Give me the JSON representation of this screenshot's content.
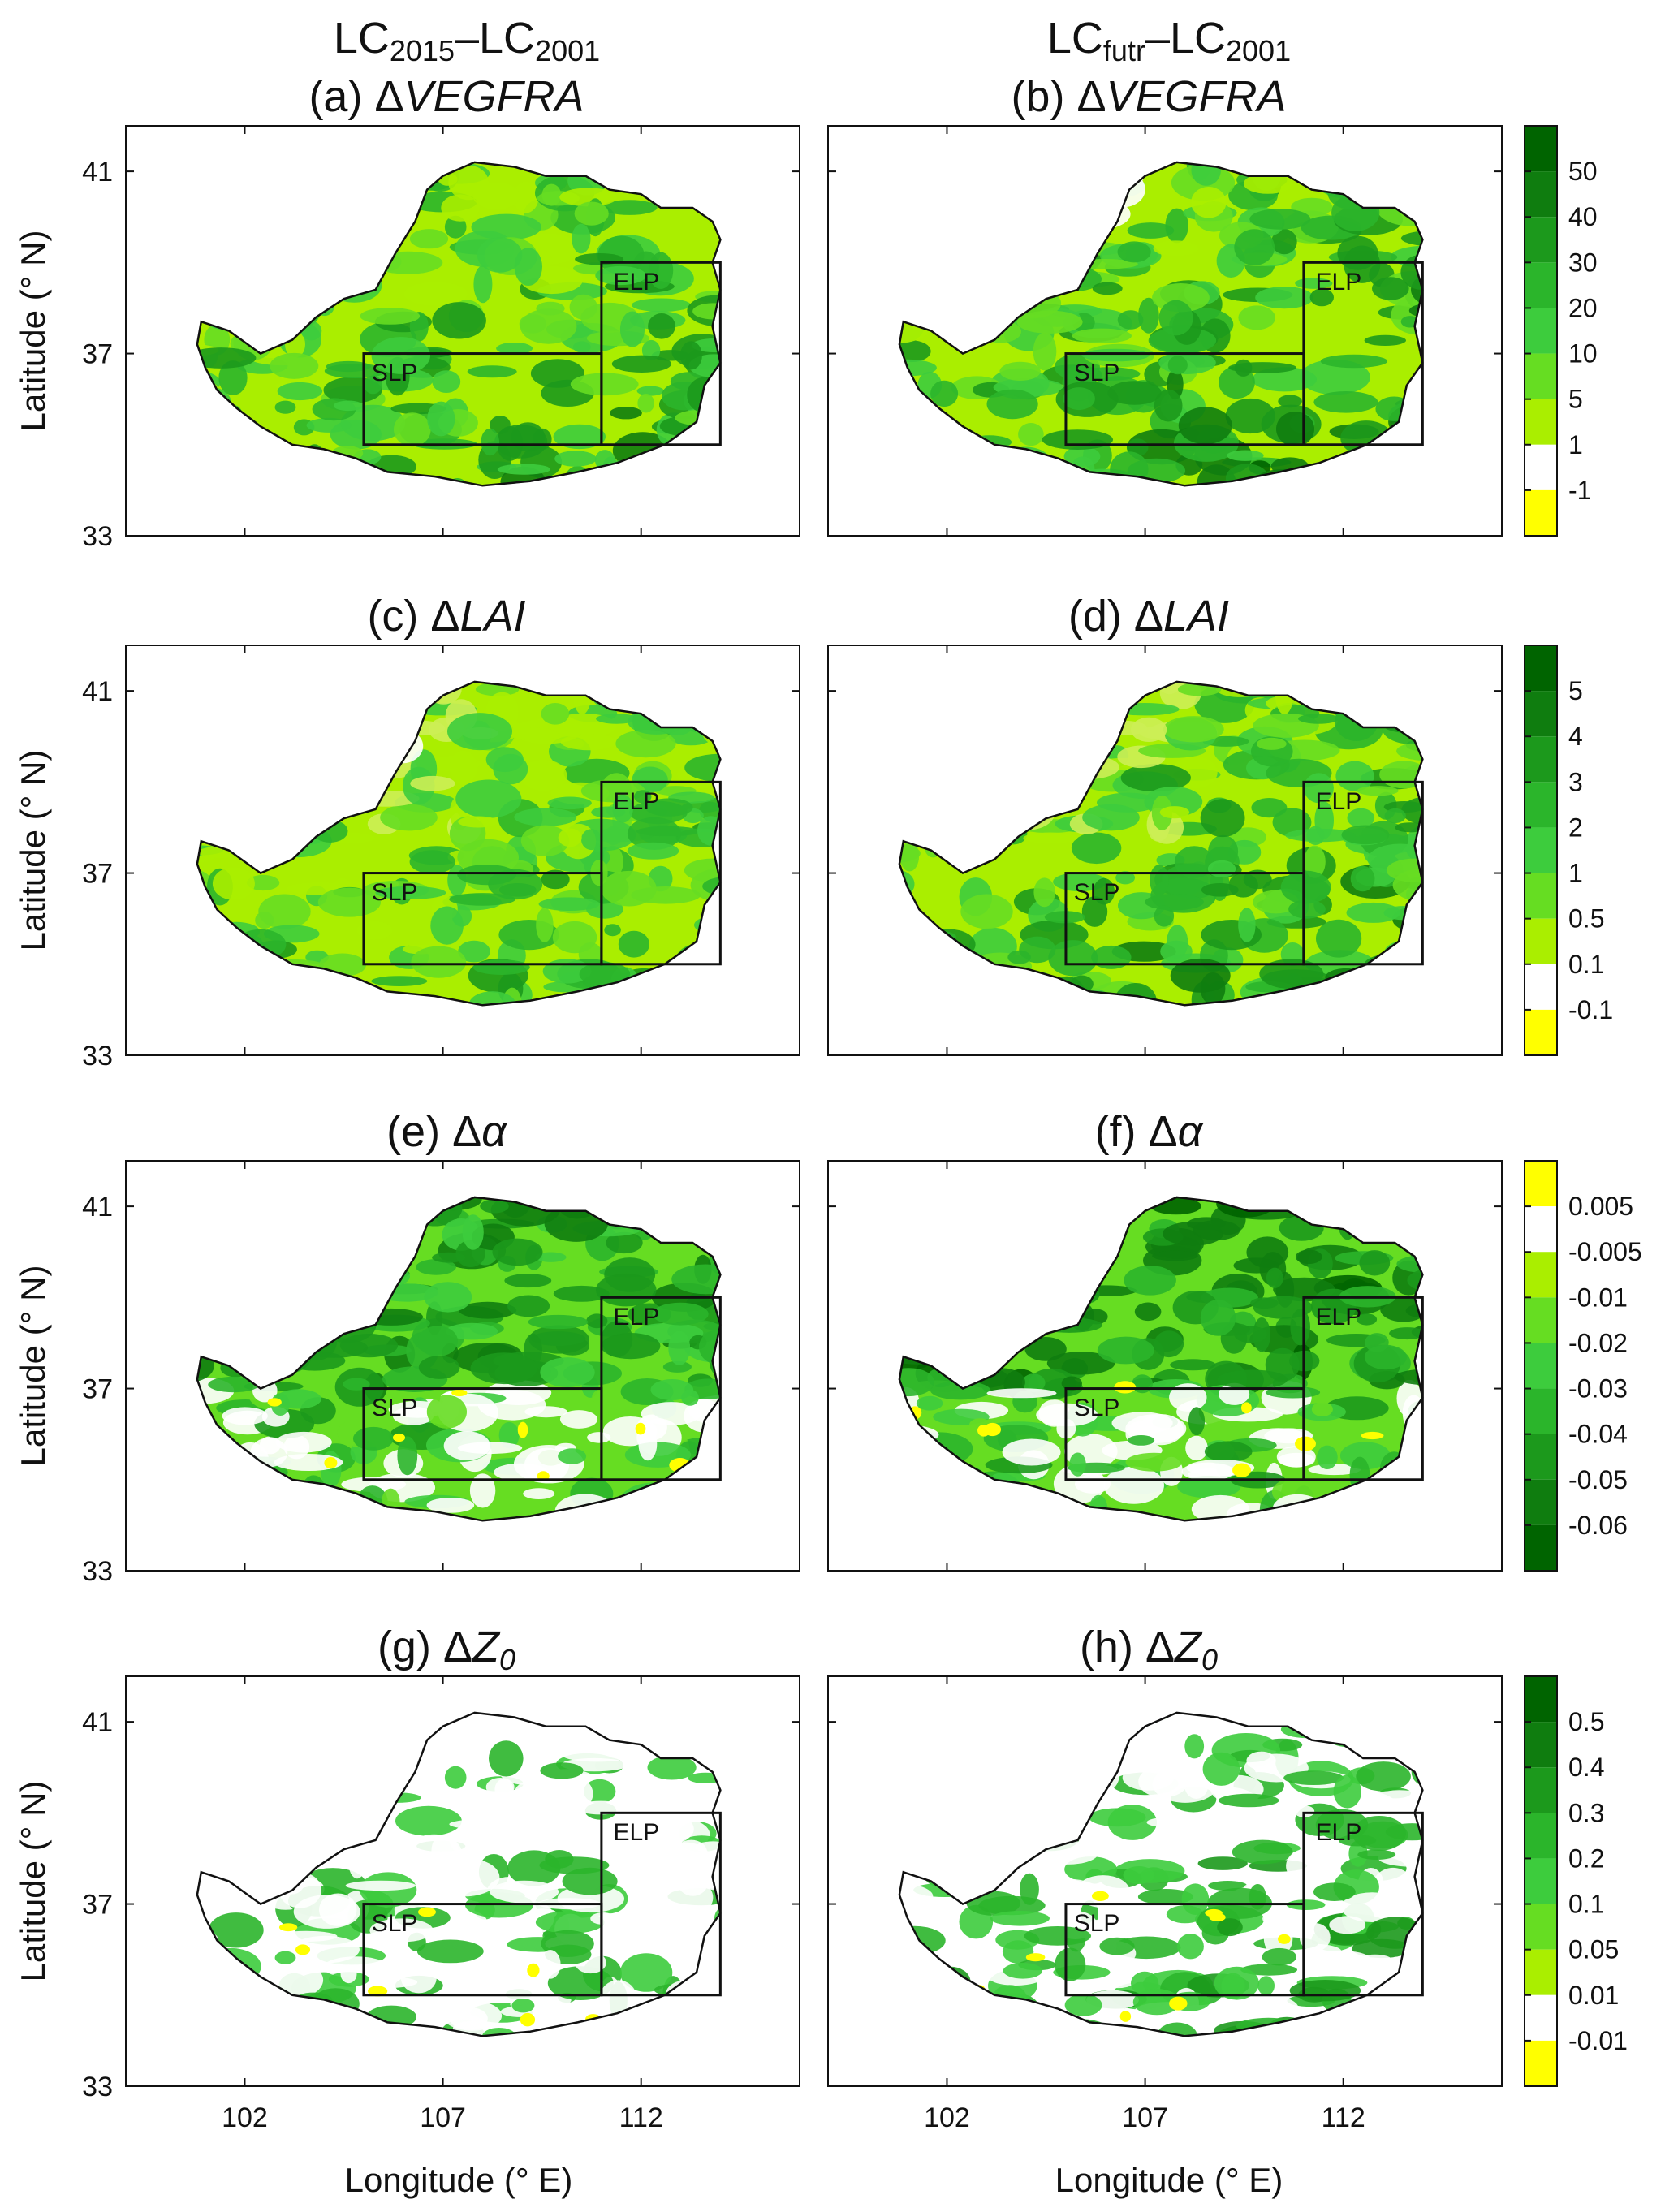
{
  "columns": {
    "left": {
      "base": "LC",
      "sub1": "2015",
      "dash": "–",
      "base2": "LC",
      "sub2": "2001"
    },
    "right": {
      "base": "LC",
      "sub1": "futr",
      "dash": "–",
      "base2": "LC",
      "sub2": "2001"
    }
  },
  "rows": [
    {
      "left": {
        "prefix": "(a) ",
        "delta": "Δ",
        "var": "VEGFRA",
        "sub": ""
      },
      "right": {
        "prefix": "(b) ",
        "delta": "Δ",
        "var": "VEGFRA",
        "sub": ""
      },
      "colorbar": {
        "labels": [
          "50",
          "40",
          "30",
          "20",
          "10",
          "5",
          "1",
          "-1"
        ],
        "colors": [
          "#006400",
          "#0f7d0f",
          "#1c991c",
          "#2bb52b",
          "#3dcc3d",
          "#66dd22",
          "#aaee00",
          "#ffffff",
          "#ffff00"
        ]
      },
      "intensity_left": 0.45,
      "intensity_right": 0.6
    },
    {
      "left": {
        "prefix": "(c) ",
        "delta": "Δ",
        "var": "LAI",
        "sub": ""
      },
      "right": {
        "prefix": "(d) ",
        "delta": "Δ",
        "var": "LAI",
        "sub": ""
      },
      "colorbar": {
        "labels": [
          "5",
          "4",
          "3",
          "2",
          "1",
          "0.5",
          "0.1",
          "-0.1"
        ],
        "colors": [
          "#006400",
          "#0f7d0f",
          "#1c991c",
          "#2bb52b",
          "#3dcc3d",
          "#66dd22",
          "#aaee00",
          "#ffffff",
          "#ffff00"
        ]
      },
      "intensity_left": 0.3,
      "intensity_right": 0.5
    },
    {
      "left": {
        "prefix": "(e) ",
        "delta": "Δ",
        "var": "α",
        "sub": ""
      },
      "right": {
        "prefix": "(f) ",
        "delta": "Δ",
        "var": "α",
        "sub": ""
      },
      "colorbar": {
        "labels": [
          "0.005",
          "-0.005",
          "-0.01",
          "-0.02",
          "-0.03",
          "-0.04",
          "-0.05",
          "-0.06"
        ],
        "colors": [
          "#ffff00",
          "#ffffff",
          "#aaee00",
          "#66dd22",
          "#3dcc3d",
          "#2bb52b",
          "#1c991c",
          "#0f7d0f",
          "#006400"
        ]
      },
      "intensity_left": 0.35,
      "intensity_right": 0.45
    },
    {
      "left": {
        "prefix": "(g) ",
        "delta": "Δ",
        "var": "Z",
        "sub": "0"
      },
      "right": {
        "prefix": "(h) ",
        "delta": "Δ",
        "var": "Z",
        "sub": "0"
      },
      "colorbar": {
        "labels": [
          "0.5",
          "0.4",
          "0.3",
          "0.2",
          "0.1",
          "0.05",
          "0.01",
          "-0.01"
        ],
        "colors": [
          "#006400",
          "#0f7d0f",
          "#1c991c",
          "#2bb52b",
          "#3dcc3d",
          "#66dd22",
          "#aaee00",
          "#ffffff",
          "#ffff00"
        ]
      },
      "intensity_left": 0.15,
      "intensity_right": 0.35
    }
  ],
  "axes": {
    "xlabel": "Longitude (° E)",
    "ylabel": "Latitude (° N)",
    "xticks": [
      "102",
      "107",
      "112"
    ],
    "yticks": [
      "41",
      "37",
      "33"
    ]
  },
  "regions": {
    "elp": "ELP",
    "slp": "SLP"
  },
  "colors": {
    "frame": "#111111",
    "boundary": "#111111",
    "white": "#ffffff",
    "yellow": "#ffff00"
  }
}
